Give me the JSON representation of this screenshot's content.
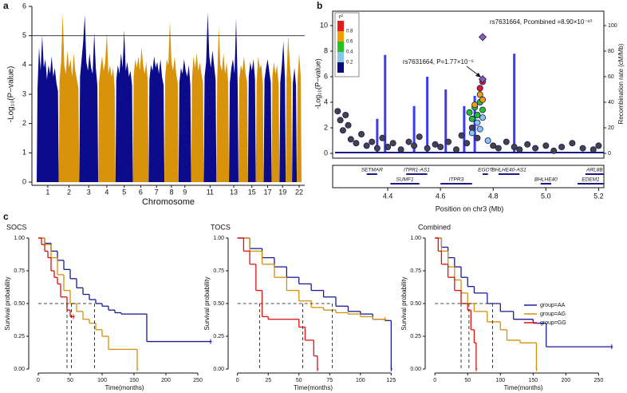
{
  "chart_data": [
    {
      "type": "manhattan",
      "panel_label": "a",
      "xlabel": "Chromosome",
      "ylabel": "-Log₁₀(P−value)",
      "ylim": [
        0,
        6
      ],
      "yticks": [
        0,
        1,
        2,
        3,
        4,
        5,
        6
      ],
      "threshold": 5,
      "colors": [
        "#0b0b8c",
        "#d9930a"
      ],
      "chromosomes": [
        {
          "label": "1",
          "values": [
            3.2,
            4.6,
            3.8,
            5.0,
            3.9,
            4.2,
            3.5,
            4.0,
            3.7,
            4.3,
            3.6,
            3.9,
            3.4,
            3.1
          ]
        },
        {
          "label": "2",
          "values": [
            3.5,
            4.1,
            5.8,
            4.0,
            3.7,
            4.5,
            3.9,
            4.2,
            3.6,
            4.4,
            3.8,
            3.5,
            3.2
          ]
        },
        {
          "label": "3",
          "values": [
            3.6,
            4.2,
            4.8,
            5.7,
            4.1,
            3.8,
            4.4,
            3.9,
            3.7,
            5.1,
            3.9,
            3.3
          ]
        },
        {
          "label": "4",
          "values": [
            3.4,
            3.9,
            4.3,
            3.8,
            4.1,
            5.1,
            3.7,
            4.0,
            3.6,
            3.9,
            3.2
          ]
        },
        {
          "label": "5",
          "values": [
            3.5,
            4.0,
            3.7,
            4.4,
            3.9,
            5.2,
            3.8,
            4.1,
            3.6,
            3.8,
            3.3
          ]
        },
        {
          "label": "6",
          "values": [
            3.6,
            4.2,
            3.9,
            4.3,
            3.8,
            4.6,
            4.0,
            3.7,
            4.1,
            3.4
          ]
        },
        {
          "label": "7",
          "values": [
            3.5,
            4.0,
            3.8,
            4.3,
            3.9,
            4.1,
            3.7,
            4.2,
            3.6,
            3.3
          ]
        },
        {
          "label": "8",
          "values": [
            3.6,
            4.2,
            4.0,
            5.5,
            4.1,
            3.8,
            4.3,
            3.7,
            3.4
          ]
        },
        {
          "label": "9",
          "values": [
            3.4,
            3.9,
            3.7,
            4.2,
            3.8,
            3.6,
            4.0,
            3.3
          ]
        },
        {
          "label": null,
          "values": [
            3.5,
            4.3,
            3.9,
            4.4,
            3.8,
            4.1,
            3.7,
            3.4
          ]
        },
        {
          "label": "11",
          "values": [
            3.6,
            4.1,
            5.8,
            4.3,
            3.9,
            4.5,
            4.0,
            3.5
          ]
        },
        {
          "label": null,
          "values": [
            3.5,
            5.3,
            4.0,
            3.8,
            4.4,
            3.7,
            4.1,
            3.4
          ]
        },
        {
          "label": "13",
          "values": [
            3.4,
            3.9,
            4.2,
            3.7,
            5.6,
            3.3
          ]
        },
        {
          "label": null,
          "values": [
            3.5,
            4.0,
            3.8,
            4.3,
            3.7,
            3.4
          ]
        },
        {
          "label": "15",
          "values": [
            3.6,
            4.1,
            3.8,
            4.2,
            3.5
          ]
        },
        {
          "label": null,
          "values": [
            3.4,
            4.3,
            3.9,
            4.0,
            3.3
          ]
        },
        {
          "label": "17",
          "values": [
            3.5,
            3.9,
            4.2,
            3.8,
            3.4
          ]
        },
        {
          "label": null,
          "values": [
            3.6,
            4.1,
            3.7,
            4.0,
            3.3
          ]
        },
        {
          "label": "19",
          "values": [
            3.4,
            4.0,
            4.8,
            3.5
          ]
        },
        {
          "label": null,
          "values": [
            3.5,
            5.0,
            4.1,
            3.4
          ]
        },
        {
          "label": null,
          "values": [
            3.4,
            3.9,
            3.3
          ]
        },
        {
          "label": "22",
          "values": [
            3.5,
            4.4,
            3.6
          ]
        }
      ]
    },
    {
      "type": "regional",
      "panel_label": "b",
      "xlabel": "Position on chr3 (Mb)",
      "ylabel": "-Log₁₀(P−value)",
      "y2label": "Recombination rate (cM/Mb)",
      "xlim": [
        4.2,
        5.22
      ],
      "xticks": [
        4.4,
        4.6,
        4.8,
        {
          "value": 5,
          "label": "5.0"
        },
        5.2
      ],
      "ylim": [
        0,
        10
      ],
      "yticks": [
        0,
        2,
        4,
        6,
        8,
        10
      ],
      "y2lim": [
        0,
        100
      ],
      "y2ticks": [
        0,
        20,
        40,
        60,
        80,
        100
      ],
      "legend": {
        "title": "r²",
        "colors": [
          "#e41a1c",
          "#f0a000",
          "#22c422",
          "#86c6e8",
          "#0a0a7a"
        ],
        "labels": [
          "0.8",
          "0.6",
          "0.4",
          "0.2"
        ]
      },
      "recombination": {
        "color": "#3b3bf0",
        "axis": "y2",
        "x": [
          4.36,
          4.39,
          4.5,
          4.55,
          4.62,
          4.69,
          4.73,
          4.88
        ],
        "values": [
          27,
          77,
          37,
          60,
          50,
          37,
          45,
          78
        ]
      },
      "snp_groups": [
        {
          "color": "#444444",
          "x": [
            4.21,
            4.22,
            4.23,
            4.24,
            4.25,
            4.26,
            4.28,
            4.3,
            4.32,
            4.34,
            4.36,
            4.38,
            4.4,
            4.42,
            4.45,
            4.48,
            4.5,
            4.52,
            4.55,
            4.58,
            4.6,
            4.63,
            4.66,
            4.68,
            4.7,
            4.72,
            4.74,
            4.8,
            4.82,
            4.85,
            4.88,
            4.9,
            4.93,
            4.96,
            5.0,
            5.03,
            5.06,
            5.1,
            5.14,
            5.18,
            5.2
          ],
          "values": [
            3.3,
            2.6,
            1.8,
            3.0,
            2.2,
            1.1,
            0.8,
            1.5,
            0.6,
            0.9,
            0.4,
            1.2,
            0.5,
            0.8,
            0.3,
            0.9,
            0.6,
            1.3,
            0.4,
            0.7,
            0.5,
            0.9,
            0.3,
            1.4,
            0.8,
            2.0,
            1.2,
            0.6,
            0.4,
            0.9,
            0.5,
            0.3,
            0.7,
            0.4,
            0.6,
            0.2,
            0.5,
            0.8,
            0.4,
            0.3,
            0.6
          ]
        },
        {
          "color": "#86c6e8",
          "x": [
            4.72,
            4.74,
            4.75,
            4.76,
            4.78
          ],
          "values": [
            1.6,
            2.4,
            1.9,
            2.8,
            1.0
          ]
        },
        {
          "color": "#22c422",
          "x": [
            4.71,
            4.72,
            4.73,
            4.74,
            4.75,
            4.76
          ],
          "values": [
            3.2,
            2.7,
            3.6,
            3.0,
            4.0,
            3.4
          ]
        },
        {
          "color": "#f0a000",
          "x": [
            4.73,
            4.75,
            4.76
          ],
          "values": [
            3.8,
            4.6,
            4.2
          ]
        },
        {
          "color": "#e41a1c",
          "x": [
            4.75,
            4.76
          ],
          "values": [
            5.1,
            5.6
          ]
        },
        {
          "color": "#8e5bb0",
          "shape": "diamond",
          "x": [
            4.76,
            4.76
          ],
          "values": [
            9.1,
            5.8
          ]
        }
      ],
      "annotations": [
        "rs7631664, Pcombined =8.90×10⁻¹⁰",
        "rs7631664, P=1.77×10⁻⁶"
      ],
      "genes": [
        {
          "name": "SETMAR",
          "start": 4.32,
          "end": 4.36
        },
        {
          "name": "SUMF1",
          "start": 4.41,
          "end": 4.52
        },
        {
          "name": "ITPR1-AS1",
          "start": 4.47,
          "end": 4.55
        },
        {
          "name": "ITPR3",
          "start": 4.6,
          "end": 4.72
        },
        {
          "name": "EGOT",
          "start": 4.76,
          "end": 4.78
        },
        {
          "name": "BHLHE40-AS1",
          "start": 4.82,
          "end": 4.9
        },
        {
          "name": "BHLHE40",
          "start": 4.98,
          "end": 5.02
        },
        {
          "name": "ARL8B",
          "start": 5.15,
          "end": 5.22
        },
        {
          "name": "EDEM1",
          "start": 5.12,
          "end": 5.22
        }
      ]
    },
    {
      "type": "km",
      "panel_label": "c",
      "title": "SOCS",
      "xlabel": "Time(months)",
      "ylabel": "Survival probability",
      "xlim": [
        -10,
        280
      ],
      "xticks": [
        0,
        50,
        100,
        150,
        200,
        250
      ],
      "ylim": [
        0,
        1
      ],
      "yticks": [
        {
          "value": 0,
          "label": "0.00"
        },
        0.25,
        {
          "value": 0.5,
          "label": "0.50"
        },
        0.75,
        {
          "value": 1,
          "label": "1.00"
        }
      ],
      "median_level": 0.5,
      "medians": [
        45,
        52,
        88
      ],
      "series": [
        {
          "name": "group=AA",
          "color": "#1a1a9a",
          "x": [
            0,
            10,
            20,
            30,
            40,
            50,
            60,
            70,
            80,
            90,
            100,
            110,
            120,
            130,
            150,
            170,
            270
          ],
          "values": [
            1,
            0.96,
            0.9,
            0.83,
            0.76,
            0.69,
            0.62,
            0.57,
            0.53,
            0.5,
            0.48,
            0.45,
            0.43,
            0.42,
            0.42,
            0.21,
            0.21
          ]
        },
        {
          "name": "group=AG",
          "color": "#d4900a",
          "x": [
            0,
            10,
            20,
            30,
            40,
            50,
            60,
            70,
            80,
            90,
            100,
            110,
            120,
            150,
            155
          ],
          "values": [
            1,
            0.95,
            0.85,
            0.72,
            0.6,
            0.5,
            0.44,
            0.38,
            0.35,
            0.3,
            0.25,
            0.15,
            0.15,
            0.15,
            0
          ]
        },
        {
          "name": "group=GG",
          "color": "#e01010",
          "x": [
            0,
            5,
            10,
            15,
            20,
            25,
            30,
            35,
            40,
            45,
            50,
            55
          ],
          "values": [
            1,
            0.95,
            0.9,
            0.85,
            0.75,
            0.7,
            0.65,
            0.55,
            0.55,
            0.45,
            0.4,
            0.4
          ]
        }
      ]
    },
    {
      "type": "km",
      "title": "TOCS",
      "xlabel": "Time(months)",
      "ylabel": "Survival probability",
      "xlim": [
        -5,
        128
      ],
      "xticks": [
        0,
        25,
        50,
        75,
        100,
        125
      ],
      "ylim": [
        0,
        1
      ],
      "yticks": [
        {
          "value": 0,
          "label": "0.00"
        },
        0.25,
        {
          "value": 0.5,
          "label": "0.50"
        },
        0.75,
        {
          "value": 1,
          "label": "1.00"
        }
      ],
      "median_level": 0.5,
      "medians": [
        18,
        53,
        77
      ],
      "series": [
        {
          "name": "group=AA",
          "color": "#1a1a9a",
          "x": [
            0,
            10,
            20,
            30,
            40,
            50,
            60,
            70,
            80,
            90,
            100,
            110,
            120,
            125
          ],
          "values": [
            1,
            0.92,
            0.85,
            0.78,
            0.7,
            0.65,
            0.6,
            0.55,
            0.48,
            0.44,
            0.42,
            0.38,
            0.37,
            0
          ]
        },
        {
          "name": "group=AG",
          "color": "#d4900a",
          "x": [
            0,
            10,
            20,
            30,
            40,
            50,
            60,
            70,
            80,
            90,
            100,
            110,
            120
          ],
          "values": [
            1,
            0.9,
            0.8,
            0.7,
            0.6,
            0.52,
            0.47,
            0.45,
            0.43,
            0.42,
            0.4,
            0.38,
            0.38
          ]
        },
        {
          "name": "group=GG",
          "color": "#e01010",
          "x": [
            0,
            5,
            10,
            15,
            20,
            25,
            30,
            40,
            50,
            55,
            60,
            62,
            65
          ],
          "values": [
            1,
            0.9,
            0.8,
            0.6,
            0.4,
            0.38,
            0.38,
            0.38,
            0.32,
            0.22,
            0.22,
            0.1,
            0
          ]
        }
      ]
    },
    {
      "type": "km",
      "title": "Combined",
      "xlabel": "Time(months)",
      "ylabel": "Survival probability",
      "legend": "right",
      "xlim": [
        -10,
        280
      ],
      "xticks": [
        0,
        50,
        100,
        150,
        200,
        250
      ],
      "ylim": [
        0,
        1
      ],
      "yticks": [
        {
          "value": 0,
          "label": "0.00"
        },
        0.25,
        {
          "value": 0.5,
          "label": "0.50"
        },
        0.75,
        {
          "value": 1,
          "label": "1.00"
        }
      ],
      "median_level": 0.5,
      "medians": [
        40,
        52,
        88
      ],
      "series": [
        {
          "name": "group=AA",
          "color": "#1a1a9a",
          "x": [
            0,
            10,
            20,
            30,
            40,
            50,
            60,
            80,
            100,
            120,
            150,
            170,
            270
          ],
          "values": [
            1,
            0.93,
            0.85,
            0.78,
            0.7,
            0.63,
            0.58,
            0.5,
            0.44,
            0.38,
            0.35,
            0.17,
            0.17
          ]
        },
        {
          "name": "group=AG",
          "color": "#d4900a",
          "x": [
            0,
            10,
            20,
            30,
            40,
            50,
            60,
            80,
            100,
            110,
            130,
            150,
            155
          ],
          "values": [
            1,
            0.9,
            0.78,
            0.68,
            0.58,
            0.5,
            0.44,
            0.36,
            0.3,
            0.22,
            0.2,
            0.2,
            0
          ]
        },
        {
          "name": "group=GG",
          "color": "#e01010",
          "x": [
            0,
            5,
            10,
            20,
            30,
            40,
            50,
            55,
            60,
            63
          ],
          "values": [
            1,
            0.9,
            0.8,
            0.7,
            0.6,
            0.5,
            0.45,
            0.3,
            0.2,
            0
          ]
        }
      ]
    }
  ]
}
